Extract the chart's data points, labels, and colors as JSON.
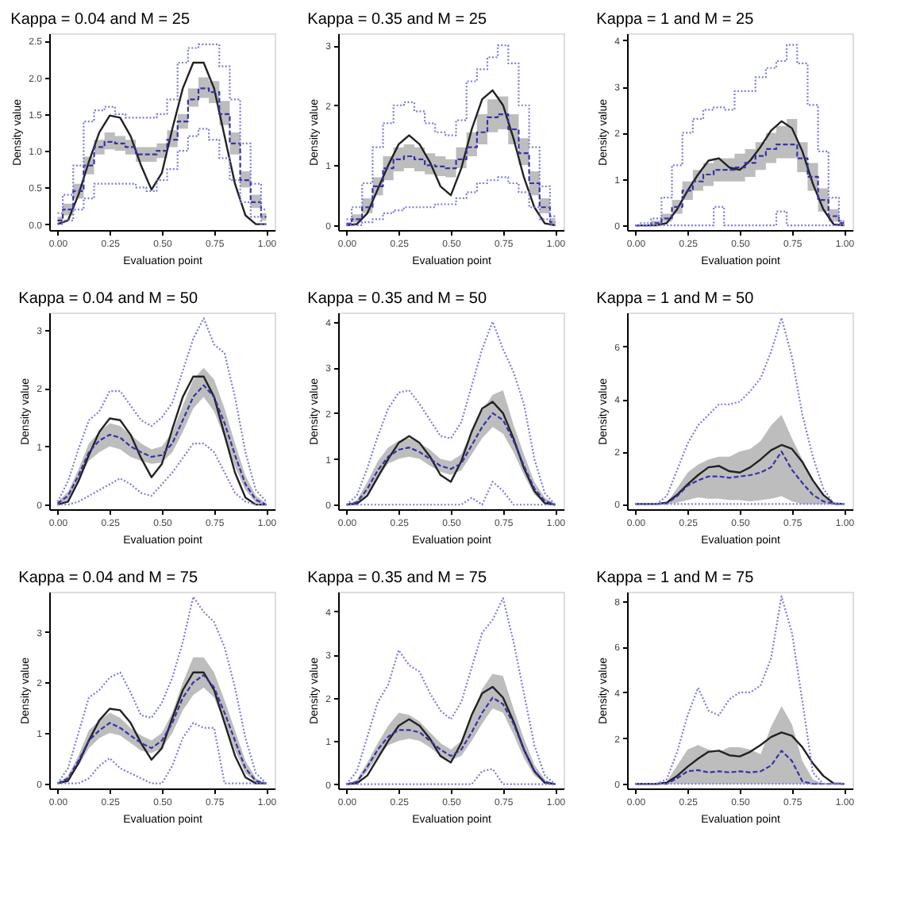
{
  "chart_data": [
    {
      "type": "line",
      "title": "Kappa = 0.04 and M = 25",
      "xlabel": "Evaluation point",
      "ylabel": "Density value",
      "grid": false,
      "x": [
        0,
        0.05,
        0.1,
        0.15,
        0.2,
        0.25,
        0.3,
        0.35,
        0.4,
        0.45,
        0.5,
        0.55,
        0.6,
        0.65,
        0.7,
        0.75,
        0.8,
        0.85,
        0.9,
        0.95,
        1
      ],
      "xlim": [
        -0.04,
        1.04
      ],
      "xticks": [
        {
          "value": 0,
          "label": "0.00"
        },
        {
          "value": 0.25,
          "label": "0.25"
        },
        {
          "value": 0.5,
          "label": "0.50"
        },
        {
          "value": 0.75,
          "label": "0.75"
        },
        {
          "value": 1,
          "label": "1.00"
        }
      ],
      "ylim": [
        -0.08,
        2.6
      ],
      "yticks": [
        {
          "value": 0,
          "label": "0.0"
        },
        {
          "value": 0.5,
          "label": "0.5"
        },
        {
          "value": 1,
          "label": "1.0"
        },
        {
          "value": 1.5,
          "label": "1.5"
        },
        {
          "value": 2,
          "label": "2.0"
        },
        {
          "value": 2.5,
          "label": "2.5"
        }
      ],
      "series": [
        {
          "type": "line",
          "color": "#222222",
          "values": [
            0,
            0.05,
            0.4,
            0.85,
            1.25,
            1.48,
            1.45,
            1.2,
            0.8,
            0.47,
            0.7,
            1.3,
            1.85,
            2.2,
            2.2,
            1.85,
            1.2,
            0.55,
            0.12,
            0,
            0
          ]
        },
        {
          "type": "step",
          "color": "#3333aa",
          "line_style": "dashed",
          "values": [
            0.05,
            0.2,
            0.45,
            0.8,
            1.05,
            1.12,
            1.1,
            1.05,
            0.95,
            0.95,
            1.0,
            1.15,
            1.4,
            1.7,
            1.85,
            1.8,
            1.5,
            1.1,
            0.6,
            0.3,
            0.1
          ],
          "lower": [
            0,
            0.12,
            0.35,
            0.68,
            0.95,
            1.02,
            1.0,
            0.95,
            0.85,
            0.85,
            0.9,
            1.05,
            1.3,
            1.6,
            1.72,
            1.65,
            1.35,
            0.95,
            0.5,
            0.22,
            0.05
          ],
          "upper": [
            0.1,
            0.28,
            0.55,
            0.92,
            1.15,
            1.25,
            1.2,
            1.15,
            1.05,
            1.05,
            1.1,
            1.28,
            1.5,
            1.85,
            2.0,
            1.95,
            1.68,
            1.25,
            0.72,
            0.4,
            0.15
          ]
        },
        {
          "type": "step",
          "color": "#7b7be0",
          "line_style": "dotted",
          "values": [
            0.15,
            0.4,
            0.8,
            1.4,
            1.55,
            1.6,
            1.5,
            1.45,
            1.45,
            1.45,
            1.5,
            1.7,
            2.2,
            2.4,
            2.45,
            2.45,
            2.15,
            1.7,
            1.1,
            0.55,
            0.2
          ]
        },
        {
          "type": "step",
          "color": "#7b7be0",
          "line_style": "dotted",
          "values": [
            0,
            0.05,
            0.2,
            0.35,
            0.55,
            0.55,
            0.55,
            0.55,
            0.5,
            0.45,
            0.6,
            0.75,
            1.0,
            1.2,
            1.3,
            1.15,
            0.9,
            0.6,
            0.3,
            0.1,
            0
          ]
        }
      ]
    },
    {
      "type": "line",
      "title": "Kappa = 0.35 and M = 25",
      "xlabel": "Evaluation point",
      "ylabel": "Density value",
      "grid": false,
      "x": [
        0,
        0.05,
        0.1,
        0.15,
        0.2,
        0.25,
        0.3,
        0.35,
        0.4,
        0.45,
        0.5,
        0.55,
        0.6,
        0.65,
        0.7,
        0.75,
        0.8,
        0.85,
        0.9,
        0.95,
        1
      ],
      "xlim": [
        -0.04,
        1.04
      ],
      "xticks": [
        {
          "value": 0,
          "label": "0.00"
        },
        {
          "value": 0.25,
          "label": "0.25"
        },
        {
          "value": 0.5,
          "label": "0.50"
        },
        {
          "value": 0.75,
          "label": "0.75"
        },
        {
          "value": 1,
          "label": "1.00"
        }
      ],
      "ylim": [
        -0.08,
        3.2
      ],
      "yticks": [
        0,
        1,
        2,
        3
      ],
      "series": [
        {
          "type": "line",
          "color": "#222222",
          "values": [
            0,
            0.02,
            0.2,
            0.6,
            1.0,
            1.35,
            1.5,
            1.35,
            1.05,
            0.65,
            0.5,
            0.95,
            1.6,
            2.1,
            2.25,
            2.0,
            1.45,
            0.8,
            0.3,
            0.03,
            0
          ]
        },
        {
          "type": "step",
          "color": "#3333aa",
          "line_style": "dashed",
          "values": [
            0.02,
            0.1,
            0.3,
            0.65,
            0.95,
            1.1,
            1.15,
            1.1,
            1.0,
            0.98,
            0.95,
            1.1,
            1.3,
            1.55,
            1.8,
            1.85,
            1.6,
            1.2,
            0.7,
            0.3,
            0.05
          ],
          "lower": [
            0,
            0.05,
            0.2,
            0.5,
            0.75,
            0.9,
            0.95,
            0.9,
            0.85,
            0.82,
            0.8,
            0.95,
            1.15,
            1.35,
            1.55,
            1.6,
            1.35,
            1.0,
            0.5,
            0.2,
            0
          ],
          "upper": [
            0.05,
            0.18,
            0.45,
            0.8,
            1.15,
            1.3,
            1.35,
            1.3,
            1.2,
            1.15,
            1.1,
            1.3,
            1.55,
            1.85,
            2.1,
            2.15,
            1.85,
            1.45,
            0.9,
            0.45,
            0.12
          ]
        },
        {
          "type": "step",
          "color": "#7b7be0",
          "line_style": "dotted",
          "values": [
            0.1,
            0.3,
            0.7,
            1.3,
            1.7,
            2.0,
            2.05,
            1.9,
            1.7,
            1.55,
            1.5,
            1.75,
            2.4,
            2.6,
            2.8,
            3.0,
            2.7,
            2.0,
            1.3,
            0.65,
            0.15
          ]
        },
        {
          "type": "step",
          "color": "#7b7be0",
          "line_style": "dotted",
          "values": [
            0,
            0,
            0.05,
            0.1,
            0.2,
            0.25,
            0.3,
            0.3,
            0.3,
            0.35,
            0.35,
            0.45,
            0.55,
            0.7,
            0.75,
            0.8,
            0.7,
            0.55,
            0.3,
            0.1,
            0
          ]
        }
      ]
    },
    {
      "type": "line",
      "title": "Kappa = 1 and M = 25",
      "xlabel": "Evaluation point",
      "ylabel": "Density value",
      "grid": false,
      "x": [
        0,
        0.05,
        0.1,
        0.15,
        0.2,
        0.25,
        0.3,
        0.35,
        0.4,
        0.45,
        0.5,
        0.55,
        0.6,
        0.65,
        0.7,
        0.75,
        0.8,
        0.85,
        0.9,
        0.95,
        1
      ],
      "xlim": [
        -0.04,
        1.04
      ],
      "xticks": [
        {
          "value": 0,
          "label": "0.00"
        },
        {
          "value": 0.25,
          "label": "0.25"
        },
        {
          "value": 0.5,
          "label": "0.50"
        },
        {
          "value": 0.75,
          "label": "0.75"
        },
        {
          "value": 1,
          "label": "1.00"
        }
      ],
      "ylim": [
        -0.1,
        4.15
      ],
      "yticks": [
        0,
        1,
        2,
        3,
        4
      ],
      "series": [
        {
          "type": "line",
          "color": "#222222",
          "values": [
            0,
            0,
            0,
            0.05,
            0.35,
            0.75,
            1.1,
            1.4,
            1.45,
            1.25,
            1.2,
            1.4,
            1.7,
            2.05,
            2.25,
            2.1,
            1.6,
            0.9,
            0.35,
            0.02,
            0
          ]
        },
        {
          "type": "step",
          "color": "#3333aa",
          "line_style": "dashed",
          "values": [
            0,
            0,
            0.05,
            0.15,
            0.4,
            0.75,
            0.95,
            1.1,
            1.2,
            1.2,
            1.25,
            1.35,
            1.5,
            1.65,
            1.75,
            1.75,
            1.45,
            1.05,
            0.55,
            0.2,
            0.05
          ],
          "lower": [
            0,
            0,
            0.02,
            0.08,
            0.25,
            0.55,
            0.75,
            0.85,
            0.95,
            0.95,
            0.95,
            1.05,
            1.2,
            1.35,
            1.45,
            1.45,
            1.15,
            0.75,
            0.3,
            0.08,
            0
          ],
          "upper": [
            0,
            0.02,
            0.1,
            0.25,
            0.55,
            0.95,
            1.2,
            1.35,
            1.45,
            1.45,
            1.55,
            1.65,
            1.8,
            2.0,
            2.15,
            2.3,
            1.8,
            1.35,
            0.8,
            0.35,
            0.1
          ]
        },
        {
          "type": "step",
          "color": "#7b7be0",
          "line_style": "dotted",
          "values": [
            0,
            0.05,
            0.15,
            0.6,
            1.3,
            2.0,
            2.3,
            2.5,
            2.55,
            2.5,
            2.9,
            2.9,
            3.2,
            3.4,
            3.55,
            3.9,
            3.5,
            2.6,
            1.6,
            0.6,
            0.1
          ]
        },
        {
          "type": "step",
          "color": "#7b7be0",
          "line_style": "dotted",
          "values": [
            0,
            0,
            0,
            0,
            0,
            0,
            0,
            0,
            0.4,
            0,
            0,
            0,
            0,
            0,
            0.3,
            0,
            0,
            0,
            0,
            0,
            0
          ]
        }
      ]
    },
    {
      "type": "line",
      "title": "Kappa = 0.04 and M = 50",
      "xlabel": "Evaluation point",
      "ylabel": "Density value",
      "grid": false,
      "x": [
        0,
        0.05,
        0.1,
        0.15,
        0.2,
        0.25,
        0.3,
        0.35,
        0.4,
        0.45,
        0.5,
        0.55,
        0.6,
        0.65,
        0.7,
        0.75,
        0.8,
        0.85,
        0.9,
        0.95,
        1
      ],
      "xlim": [
        -0.04,
        1.04
      ],
      "xticks": [
        {
          "value": 0,
          "label": "0.00"
        },
        {
          "value": 0.25,
          "label": "0.25"
        },
        {
          "value": 0.5,
          "label": "0.50"
        },
        {
          "value": 0.75,
          "label": "0.75"
        },
        {
          "value": 1,
          "label": "1.00"
        }
      ],
      "ylim": [
        -0.08,
        3.3
      ],
      "yticks": [
        0,
        1,
        2,
        3
      ],
      "series": [
        {
          "type": "line",
          "color": "#222222",
          "values": [
            0,
            0.05,
            0.4,
            0.85,
            1.25,
            1.48,
            1.45,
            1.2,
            0.8,
            0.47,
            0.7,
            1.3,
            1.85,
            2.2,
            2.2,
            1.85,
            1.2,
            0.55,
            0.12,
            0,
            0
          ]
        },
        {
          "type": "line",
          "color": "#3333aa",
          "line_style": "dashed",
          "values": [
            0.02,
            0.15,
            0.5,
            0.9,
            1.1,
            1.2,
            1.15,
            1.0,
            0.9,
            0.82,
            0.85,
            1.05,
            1.45,
            1.85,
            2.05,
            1.85,
            1.4,
            0.85,
            0.35,
            0.08,
            0
          ],
          "lower": [
            0,
            0.08,
            0.4,
            0.75,
            0.9,
            1.0,
            0.95,
            0.82,
            0.75,
            0.7,
            0.72,
            0.9,
            1.25,
            1.65,
            1.85,
            1.6,
            1.15,
            0.65,
            0.25,
            0.03,
            0
          ],
          "upper": [
            0.05,
            0.22,
            0.6,
            1.05,
            1.25,
            1.4,
            1.35,
            1.2,
            1.05,
            0.95,
            1.0,
            1.25,
            1.7,
            2.15,
            2.35,
            2.15,
            1.65,
            1.05,
            0.5,
            0.15,
            0.02
          ]
        },
        {
          "type": "line",
          "color": "#7b7be0",
          "line_style": "dotted",
          "values": [
            0.05,
            0.4,
            0.95,
            1.45,
            1.6,
            1.95,
            1.95,
            1.7,
            1.45,
            1.35,
            1.5,
            1.75,
            2.3,
            2.85,
            3.2,
            2.75,
            2.6,
            1.85,
            0.9,
            0.25,
            0.05
          ]
        },
        {
          "type": "line",
          "color": "#7b7be0",
          "line_style": "dotted",
          "values": [
            0,
            0,
            0.05,
            0.15,
            0.25,
            0.35,
            0.45,
            0.35,
            0.2,
            0.15,
            0.35,
            0.55,
            0.8,
            1.05,
            1.05,
            0.9,
            0.55,
            0.2,
            0.05,
            0,
            0
          ]
        }
      ]
    },
    {
      "type": "line",
      "title": "Kappa = 0.35 and M = 50",
      "xlabel": "Evaluation point",
      "ylabel": "Density value",
      "grid": false,
      "x": [
        0,
        0.05,
        0.1,
        0.15,
        0.2,
        0.25,
        0.3,
        0.35,
        0.4,
        0.45,
        0.5,
        0.55,
        0.6,
        0.65,
        0.7,
        0.75,
        0.8,
        0.85,
        0.9,
        0.95,
        1
      ],
      "xlim": [
        -0.04,
        1.04
      ],
      "xticks": [
        {
          "value": 0,
          "label": "0.00"
        },
        {
          "value": 0.25,
          "label": "0.25"
        },
        {
          "value": 0.5,
          "label": "0.50"
        },
        {
          "value": 0.75,
          "label": "0.75"
        },
        {
          "value": 1,
          "label": "1.00"
        }
      ],
      "ylim": [
        -0.1,
        4.2
      ],
      "yticks": [
        0,
        1,
        2,
        3,
        4
      ],
      "series": [
        {
          "type": "line",
          "color": "#222222",
          "values": [
            0,
            0.02,
            0.2,
            0.6,
            1.0,
            1.35,
            1.5,
            1.35,
            1.05,
            0.65,
            0.5,
            0.95,
            1.6,
            2.1,
            2.25,
            2.0,
            1.45,
            0.8,
            0.3,
            0.03,
            0
          ]
        },
        {
          "type": "line",
          "color": "#3333aa",
          "line_style": "dashed",
          "values": [
            0,
            0.05,
            0.35,
            0.75,
            1.05,
            1.2,
            1.25,
            1.15,
            1.0,
            0.85,
            0.78,
            0.9,
            1.3,
            1.7,
            2.0,
            1.85,
            1.4,
            0.85,
            0.35,
            0.08,
            0
          ],
          "lower": [
            0,
            0.02,
            0.25,
            0.6,
            0.9,
            1.0,
            1.05,
            1.0,
            0.85,
            0.72,
            0.65,
            0.75,
            1.1,
            1.45,
            1.7,
            1.55,
            1.15,
            0.65,
            0.22,
            0.03,
            0
          ],
          "upper": [
            0,
            0.1,
            0.5,
            0.95,
            1.25,
            1.4,
            1.45,
            1.35,
            1.2,
            1.0,
            0.95,
            1.1,
            1.6,
            2.05,
            2.4,
            2.5,
            1.75,
            1.1,
            0.5,
            0.15,
            0.02
          ]
        },
        {
          "type": "line",
          "color": "#7b7be0",
          "line_style": "dotted",
          "values": [
            0,
            0.2,
            0.8,
            1.5,
            2.1,
            2.45,
            2.5,
            2.2,
            1.85,
            1.5,
            1.45,
            1.8,
            2.6,
            3.4,
            4.0,
            3.4,
            2.9,
            2.2,
            1.0,
            0.25,
            0
          ]
        },
        {
          "type": "line",
          "color": "#7b7be0",
          "line_style": "dotted",
          "values": [
            0,
            0,
            0,
            0,
            0,
            0,
            0,
            0,
            0,
            0,
            0,
            0,
            0.15,
            0,
            0.5,
            0.3,
            0,
            0,
            0,
            0,
            0
          ]
        }
      ]
    },
    {
      "type": "line",
      "title": "Kappa = 1 and M = 50",
      "xlabel": "Evaluation point",
      "ylabel": "Density value",
      "grid": false,
      "x": [
        0,
        0.05,
        0.1,
        0.15,
        0.2,
        0.25,
        0.3,
        0.35,
        0.4,
        0.45,
        0.5,
        0.55,
        0.6,
        0.65,
        0.7,
        0.75,
        0.8,
        0.85,
        0.9,
        0.95,
        1
      ],
      "xlim": [
        -0.04,
        1.04
      ],
      "xticks": [
        {
          "value": 0,
          "label": "0.00"
        },
        {
          "value": 0.25,
          "label": "0.25"
        },
        {
          "value": 0.5,
          "label": "0.50"
        },
        {
          "value": 0.75,
          "label": "0.75"
        },
        {
          "value": 1,
          "label": "1.00"
        }
      ],
      "ylim": [
        -0.2,
        7.3
      ],
      "yticks": [
        0,
        2,
        4,
        6
      ],
      "series": [
        {
          "type": "line",
          "color": "#222222",
          "values": [
            0,
            0,
            0,
            0.05,
            0.35,
            0.75,
            1.1,
            1.4,
            1.45,
            1.25,
            1.2,
            1.4,
            1.7,
            2.05,
            2.25,
            2.1,
            1.6,
            0.9,
            0.35,
            0.02,
            0
          ]
        },
        {
          "type": "line",
          "color": "#3333aa",
          "line_style": "dashed",
          "values": [
            0,
            0,
            0,
            0.02,
            0.3,
            0.7,
            0.9,
            1.05,
            1.05,
            1.0,
            1.05,
            1.1,
            1.2,
            1.4,
            2.0,
            1.3,
            0.8,
            0.35,
            0.1,
            0,
            0
          ],
          "lower": [
            0,
            0,
            0,
            0,
            0.05,
            0.15,
            0.25,
            0.2,
            0.2,
            0.15,
            0.15,
            0.1,
            0.15,
            0.2,
            0.3,
            0.1,
            0,
            0,
            0,
            0,
            0
          ],
          "upper": [
            0,
            0,
            0,
            0.05,
            0.6,
            1.2,
            1.5,
            1.7,
            1.8,
            1.8,
            2.0,
            2.1,
            2.4,
            3.0,
            3.4,
            2.5,
            1.7,
            0.9,
            0.3,
            0,
            0
          ]
        },
        {
          "type": "line",
          "color": "#7b7be0",
          "line_style": "dotted",
          "values": [
            0,
            0,
            0,
            0.3,
            1.3,
            2.3,
            3.0,
            3.4,
            3.8,
            3.8,
            3.9,
            4.3,
            4.8,
            5.8,
            7.1,
            5.6,
            3.4,
            1.8,
            0.6,
            0,
            0
          ]
        },
        {
          "type": "line",
          "color": "#7b7be0",
          "line_style": "dotted",
          "values": [
            0,
            0,
            0,
            0,
            0,
            0,
            0,
            0,
            0,
            0,
            0,
            0,
            0,
            0,
            0,
            0,
            0,
            0,
            0,
            0,
            0
          ]
        }
      ]
    },
    {
      "type": "line",
      "title": "Kappa = 0.04 and M = 75",
      "xlabel": "Evaluation point",
      "ylabel": "Density value",
      "grid": false,
      "x": [
        0,
        0.05,
        0.1,
        0.15,
        0.2,
        0.25,
        0.3,
        0.35,
        0.4,
        0.45,
        0.5,
        0.55,
        0.6,
        0.65,
        0.7,
        0.75,
        0.8,
        0.85,
        0.9,
        0.95,
        1
      ],
      "xlim": [
        -0.04,
        1.04
      ],
      "xticks": [
        {
          "value": 0,
          "label": "0.00"
        },
        {
          "value": 0.25,
          "label": "0.25"
        },
        {
          "value": 0.5,
          "label": "0.50"
        },
        {
          "value": 0.75,
          "label": "0.75"
        },
        {
          "value": 1,
          "label": "1.00"
        }
      ],
      "ylim": [
        -0.1,
        3.8
      ],
      "yticks": [
        0,
        1,
        2,
        3
      ],
      "series": [
        {
          "type": "line",
          "color": "#222222",
          "values": [
            0,
            0.05,
            0.4,
            0.85,
            1.25,
            1.48,
            1.45,
            1.2,
            0.8,
            0.47,
            0.7,
            1.3,
            1.85,
            2.2,
            2.2,
            1.85,
            1.2,
            0.55,
            0.12,
            0,
            0
          ]
        },
        {
          "type": "line",
          "color": "#3333aa",
          "line_style": "dashed",
          "values": [
            0,
            0.1,
            0.45,
            0.85,
            1.05,
            1.2,
            1.1,
            0.95,
            0.8,
            0.7,
            0.85,
            1.2,
            1.7,
            2.0,
            2.15,
            1.9,
            1.4,
            0.85,
            0.3,
            0.05,
            0
          ],
          "lower": [
            0,
            0.05,
            0.35,
            0.7,
            0.9,
            1.0,
            0.95,
            0.8,
            0.65,
            0.6,
            0.7,
            1.0,
            1.45,
            1.75,
            1.9,
            1.7,
            1.2,
            0.65,
            0.2,
            0.02,
            0
          ],
          "upper": [
            0,
            0.15,
            0.55,
            1.05,
            1.25,
            1.4,
            1.3,
            1.1,
            0.95,
            0.85,
            1.0,
            1.4,
            2.0,
            2.5,
            2.5,
            2.2,
            1.65,
            1.05,
            0.45,
            0.1,
            0
          ]
        },
        {
          "type": "line",
          "color": "#7b7be0",
          "line_style": "dotted",
          "values": [
            0,
            0.3,
            1.0,
            1.7,
            1.85,
            2.1,
            2.2,
            1.8,
            1.35,
            1.3,
            1.6,
            2.1,
            2.8,
            3.7,
            3.4,
            3.2,
            2.7,
            1.9,
            0.9,
            0.2,
            0
          ]
        },
        {
          "type": "line",
          "color": "#7b7be0",
          "line_style": "dotted",
          "values": [
            0,
            0,
            0,
            0.1,
            0.35,
            0.5,
            0.3,
            0.2,
            0.1,
            0,
            0,
            0.35,
            0.9,
            1.2,
            1.1,
            1.1,
            0,
            0,
            0,
            0,
            0
          ]
        }
      ]
    },
    {
      "type": "line",
      "title": "Kappa = 0.35 and M = 75",
      "xlabel": "Evaluation point",
      "ylabel": "Density value",
      "grid": false,
      "x": [
        0,
        0.05,
        0.1,
        0.15,
        0.2,
        0.25,
        0.3,
        0.35,
        0.4,
        0.45,
        0.5,
        0.55,
        0.6,
        0.65,
        0.7,
        0.75,
        0.8,
        0.85,
        0.9,
        0.95,
        1
      ],
      "xlim": [
        -0.04,
        1.04
      ],
      "xticks": [
        {
          "value": 0,
          "label": "0.00"
        },
        {
          "value": 0.25,
          "label": "0.25"
        },
        {
          "value": 0.5,
          "label": "0.50"
        },
        {
          "value": 0.75,
          "label": "0.75"
        },
        {
          "value": 1,
          "label": "1.00"
        }
      ],
      "ylim": [
        -0.1,
        4.45
      ],
      "yticks": [
        0,
        1,
        2,
        3,
        4
      ],
      "series": [
        {
          "type": "line",
          "color": "#222222",
          "values": [
            0,
            0.02,
            0.2,
            0.6,
            1.0,
            1.35,
            1.5,
            1.35,
            1.05,
            0.65,
            0.5,
            0.95,
            1.6,
            2.1,
            2.25,
            2.0,
            1.45,
            0.8,
            0.3,
            0.03,
            0
          ]
        },
        {
          "type": "line",
          "color": "#3333aa",
          "line_style": "dashed",
          "values": [
            0,
            0.05,
            0.4,
            0.8,
            1.1,
            1.25,
            1.25,
            1.2,
            1.0,
            0.8,
            0.65,
            0.8,
            1.2,
            1.65,
            2.0,
            1.85,
            1.4,
            0.8,
            0.3,
            0.05,
            0
          ],
          "lower": [
            0,
            0.02,
            0.3,
            0.65,
            0.9,
            1.0,
            1.05,
            1.0,
            0.85,
            0.65,
            0.55,
            0.65,
            1.0,
            1.4,
            1.75,
            1.65,
            1.15,
            0.6,
            0.2,
            0.02,
            0
          ],
          "upper": [
            0,
            0.1,
            0.5,
            0.95,
            1.35,
            1.65,
            1.6,
            1.45,
            1.2,
            0.95,
            0.8,
            1.0,
            1.55,
            2.2,
            2.55,
            2.5,
            1.75,
            1.05,
            0.45,
            0.1,
            0
          ]
        },
        {
          "type": "line",
          "color": "#7b7be0",
          "line_style": "dotted",
          "values": [
            0,
            0.3,
            1.1,
            1.9,
            2.3,
            3.1,
            2.75,
            2.6,
            2.1,
            1.7,
            1.5,
            1.9,
            2.7,
            3.5,
            3.8,
            4.3,
            3.3,
            2.1,
            0.9,
            0.2,
            0
          ]
        },
        {
          "type": "line",
          "color": "#7b7be0",
          "line_style": "dotted",
          "values": [
            0,
            0,
            0,
            0,
            0,
            0,
            0,
            0,
            0,
            0,
            0,
            0,
            0,
            0.3,
            0.35,
            0,
            0,
            0,
            0,
            0,
            0
          ]
        }
      ]
    },
    {
      "type": "line",
      "title": "Kappa = 1 and M = 75",
      "xlabel": "Evaluation point",
      "ylabel": "Density value",
      "grid": false,
      "x": [
        0,
        0.05,
        0.1,
        0.15,
        0.2,
        0.25,
        0.3,
        0.35,
        0.4,
        0.45,
        0.5,
        0.55,
        0.6,
        0.65,
        0.7,
        0.75,
        0.8,
        0.85,
        0.9,
        0.95,
        1
      ],
      "xlim": [
        -0.04,
        1.04
      ],
      "xticks": [
        {
          "value": 0,
          "label": "0.00"
        },
        {
          "value": 0.25,
          "label": "0.25"
        },
        {
          "value": 0.5,
          "label": "0.50"
        },
        {
          "value": 0.75,
          "label": "0.75"
        },
        {
          "value": 1,
          "label": "1.00"
        }
      ],
      "ylim": [
        -0.2,
        8.4
      ],
      "yticks": [
        0,
        2,
        4,
        6,
        8
      ],
      "series": [
        {
          "type": "line",
          "color": "#222222",
          "values": [
            0,
            0,
            0,
            0.05,
            0.35,
            0.75,
            1.1,
            1.4,
            1.45,
            1.25,
            1.2,
            1.4,
            1.7,
            2.05,
            2.25,
            2.1,
            1.6,
            0.9,
            0.35,
            0.02,
            0
          ]
        },
        {
          "type": "line",
          "color": "#3333aa",
          "line_style": "dashed",
          "values": [
            0,
            0,
            0,
            0,
            0.25,
            0.55,
            0.6,
            0.5,
            0.55,
            0.5,
            0.55,
            0.5,
            0.55,
            0.8,
            1.45,
            1.0,
            0.1,
            0,
            0,
            0,
            0
          ],
          "lower": [
            0,
            0,
            0,
            0,
            0,
            0,
            0,
            0,
            0,
            0,
            0,
            0,
            0,
            0,
            0,
            0,
            0,
            0,
            0,
            0,
            0
          ],
          "upper": [
            0,
            0,
            0,
            0.1,
            0.8,
            1.5,
            1.7,
            1.5,
            1.4,
            1.6,
            1.6,
            1.5,
            1.3,
            2.5,
            3.4,
            2.6,
            1.0,
            0.2,
            0,
            0,
            0
          ]
        },
        {
          "type": "line",
          "color": "#7b7be0",
          "line_style": "dotted",
          "values": [
            0,
            0,
            0,
            0.2,
            1.4,
            3.0,
            4.2,
            3.2,
            3.0,
            3.7,
            4.0,
            4.0,
            4.3,
            5.5,
            8.2,
            6.6,
            3.6,
            0.5,
            0,
            0,
            0
          ]
        },
        {
          "type": "line",
          "color": "#7b7be0",
          "line_style": "dotted",
          "values": [
            0,
            0,
            0,
            0,
            0,
            0,
            0,
            0,
            0,
            0,
            0,
            0,
            0,
            0,
            0,
            0,
            0,
            0,
            0,
            0,
            0
          ]
        }
      ]
    }
  ]
}
